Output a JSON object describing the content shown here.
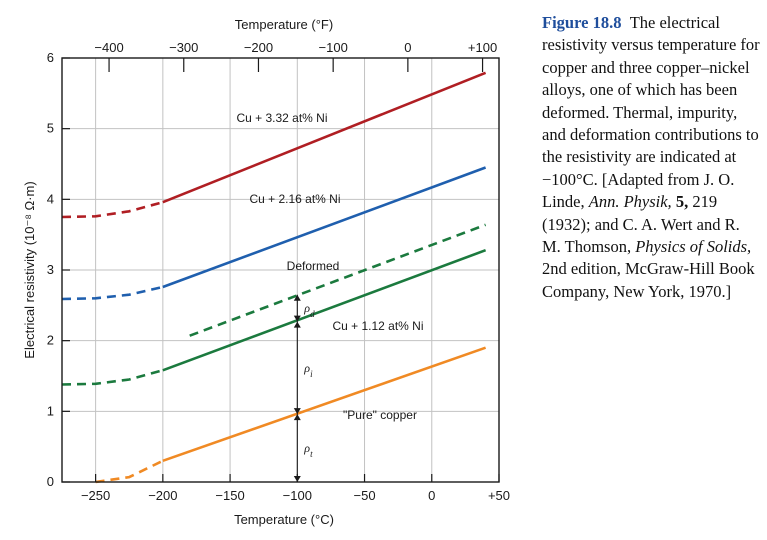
{
  "chart_data": {
    "type": "line",
    "title": "",
    "xlabel": "Temperature (°C)",
    "x2label": "Temperature (°F)",
    "ylabel": "Electrical resistivity (10⁻⁸ Ω·m)",
    "xlim": [
      -275,
      50
    ],
    "ylim": [
      0,
      6
    ],
    "xticks": [
      -250,
      -200,
      -150,
      -100,
      -50,
      0,
      50
    ],
    "xtick_labels": [
      "−250",
      "−200",
      "−150",
      "−100",
      "−50",
      "0",
      "+50"
    ],
    "x2ticks_F": [
      -400,
      -300,
      -200,
      -100,
      0,
      100
    ],
    "x2tick_labels": [
      "−400",
      "−300",
      "−200",
      "−100",
      "0",
      "+100"
    ],
    "yticks": [
      0,
      1,
      2,
      3,
      4,
      5,
      6
    ],
    "ytick_labels": [
      "0",
      "1",
      "2",
      "3",
      "4",
      "5",
      "6"
    ],
    "grid": true,
    "series": [
      {
        "name": "Cu + 3.32 at% Ni",
        "color": "#b01e23",
        "dashed": [
          [
            -275,
            3.75
          ],
          [
            -250,
            3.76
          ],
          [
            -225,
            3.83
          ],
          [
            -200,
            3.96
          ]
        ],
        "solid": [
          [
            -200,
            3.96
          ],
          [
            40,
            5.79
          ]
        ]
      },
      {
        "name": "Cu + 2.16 at% Ni",
        "color": "#1f5fae",
        "dashed": [
          [
            -275,
            2.59
          ],
          [
            -250,
            2.6
          ],
          [
            -225,
            2.65
          ],
          [
            -200,
            2.76
          ]
        ],
        "solid": [
          [
            -200,
            2.76
          ],
          [
            40,
            4.45
          ]
        ]
      },
      {
        "name": "Deformed",
        "color": "#1b7a3e",
        "dashed": [
          [
            -180,
            2.07
          ],
          [
            40,
            3.64
          ]
        ]
      },
      {
        "name": "Cu + 1.12 at% Ni",
        "color": "#1b7a3e",
        "dashed": [
          [
            -275,
            1.38
          ],
          [
            -250,
            1.39
          ],
          [
            -225,
            1.45
          ],
          [
            -200,
            1.58
          ]
        ],
        "solid": [
          [
            -200,
            1.58
          ],
          [
            40,
            3.28
          ]
        ]
      },
      {
        "name": "\"Pure\" copper",
        "color": "#f08a24",
        "dashed": [
          [
            -250,
            0.0
          ],
          [
            -225,
            0.07
          ],
          [
            -200,
            0.3
          ]
        ],
        "solid": [
          [
            -200,
            0.3
          ],
          [
            40,
            1.9
          ]
        ]
      }
    ],
    "annotations": [
      {
        "symbol": "ρ",
        "sub": "d",
        "x": -100,
        "from": 2.27,
        "to": 2.65
      },
      {
        "symbol": "ρ",
        "sub": "i",
        "x": -100,
        "from": 0.96,
        "to": 2.27
      },
      {
        "symbol": "ρ",
        "sub": "t",
        "x": -100,
        "from": 0.0,
        "to": 0.96
      }
    ]
  },
  "caption": {
    "figure_label": "Figure 18.8",
    "text_before_italic_1": "The electrical resistivity versus temperature for copper and three copper–nickel alloys, one of which has been deformed. Thermal, impurity, and deformation contributions to the resistivity are indicated at −100°C. [Adapted from J. O. Linde, ",
    "italic_1": "Ann. Physik,",
    "bold_1": "5,",
    "text_after_bold": " 219 (1932); and C. A. Wert and R. M. Thomson, ",
    "italic_2": "Physics of Solids,",
    "text_end": " 2nd edition, McGraw-Hill Book Company, New York, 1970.]"
  }
}
